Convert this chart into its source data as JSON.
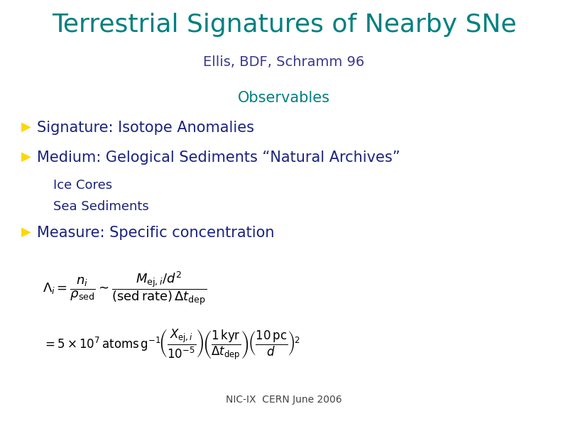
{
  "title": "Terrestrial Signatures of Nearby SNe",
  "title_color": "#008080",
  "subtitle": "Ellis, BDF, Schramm 96",
  "subtitle_color": "#3a3a8c",
  "observables_label": "Observables",
  "observables_color": "#008080",
  "bullet_color": "#FFD700",
  "bullet_text_color": "#1a237e",
  "bullet1": "Signature: Isotope Anomalies",
  "bullet2": "Medium: Gelogical Sediments “Natural Archives”",
  "sub1": "Ice Cores",
  "sub2": "Sea Sediments",
  "bullet3": "Measure: Specific concentration",
  "footer": "NIC-IX  CERN June 2006",
  "background_color": "#ffffff",
  "title_fontsize": 26,
  "subtitle_fontsize": 14,
  "observables_fontsize": 15,
  "bullet_fontsize": 15,
  "sub_fontsize": 13,
  "footer_fontsize": 10
}
